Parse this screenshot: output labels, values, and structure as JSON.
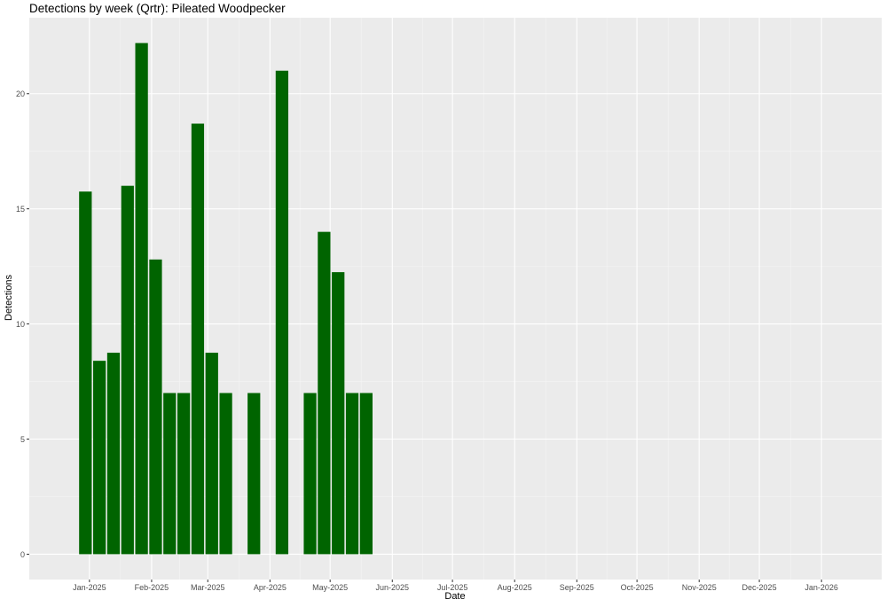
{
  "chart_data": {
    "type": "bar",
    "title": "Detections by week (Qrtr): Pileated Woodpecker",
    "xlabel": "Date",
    "ylabel": "Detections",
    "ylim": [
      -1.1,
      23.3
    ],
    "xlim": [
      "2024-12-02",
      "2026-01-31"
    ],
    "y_ticks": [
      0,
      5,
      10,
      15,
      20
    ],
    "x_ticks": [
      {
        "date": "2025-01-01",
        "label": "Jan-2025"
      },
      {
        "date": "2025-02-01",
        "label": "Feb-2025"
      },
      {
        "date": "2025-03-01",
        "label": "Mar-2025"
      },
      {
        "date": "2025-04-01",
        "label": "Apr-2025"
      },
      {
        "date": "2025-05-01",
        "label": "May-2025"
      },
      {
        "date": "2025-06-01",
        "label": "Jun-2025"
      },
      {
        "date": "2025-07-01",
        "label": "Jul-2025"
      },
      {
        "date": "2025-08-01",
        "label": "Aug-2025"
      },
      {
        "date": "2025-09-01",
        "label": "Sep-2025"
      },
      {
        "date": "2025-10-01",
        "label": "Oct-2025"
      },
      {
        "date": "2025-11-01",
        "label": "Nov-2025"
      },
      {
        "date": "2025-12-01",
        "label": "Dec-2025"
      },
      {
        "date": "2026-01-01",
        "label": "Jan-2026"
      }
    ],
    "series": [
      {
        "x": [
          "2024-12-30",
          "2025-01-06",
          "2025-01-13",
          "2025-01-20",
          "2025-01-27",
          "2025-02-03",
          "2025-02-10",
          "2025-02-17",
          "2025-02-24",
          "2025-03-03",
          "2025-03-10",
          "2025-03-24",
          "2025-04-07",
          "2025-04-21",
          "2025-04-28",
          "2025-05-05",
          "2025-05-12",
          "2025-05-19"
        ],
        "values": [
          15.75,
          8.4,
          8.75,
          16.0,
          22.2,
          12.8,
          7.0,
          7.0,
          18.7,
          8.75,
          7.0,
          7.0,
          21.0,
          7.0,
          14.0,
          12.25,
          7.0,
          7.0
        ]
      }
    ],
    "bar_width_days": 6.3,
    "colors": {
      "bar": "#006400",
      "panel": "#ebebeb",
      "grid_major": "#ffffff",
      "grid_minor": "#f5f5f5",
      "axis_text": "#4d4d4d"
    },
    "grid": true,
    "legend": "none"
  }
}
